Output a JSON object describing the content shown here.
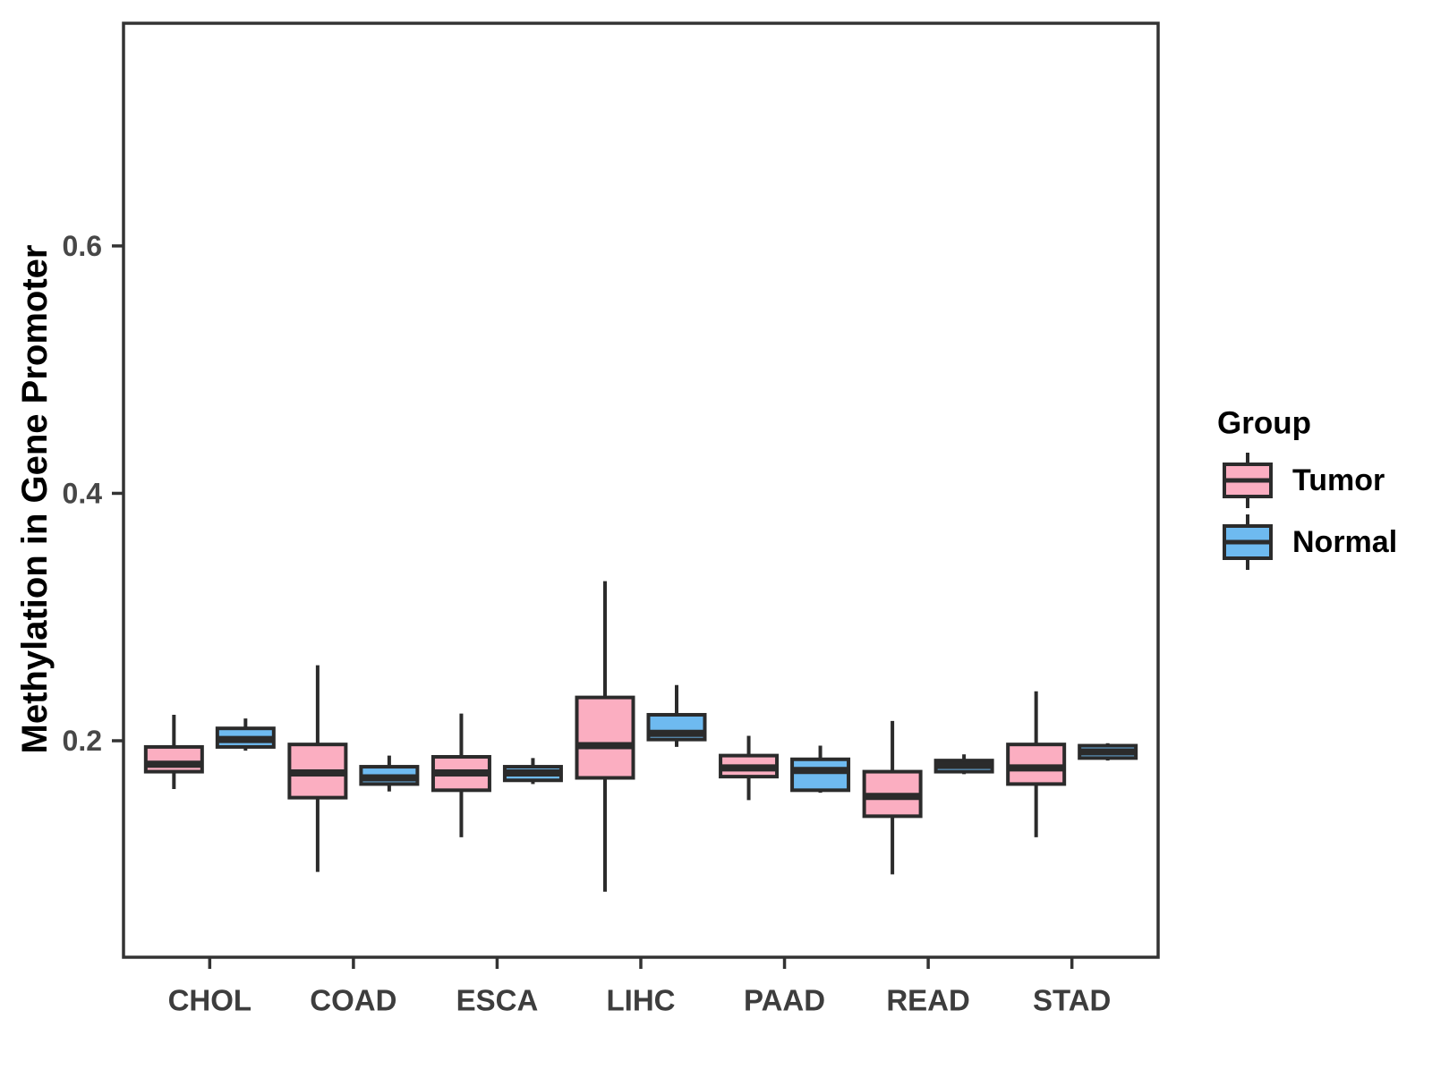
{
  "figure": {
    "background": "#FFFFFF"
  },
  "chart_data": {
    "type": "boxplot",
    "title": "",
    "xlabel": "",
    "ylabel": "Methylation in Gene Promoter",
    "categories": [
      "CHOL",
      "COAD",
      "ESCA",
      "LIHC",
      "PAAD",
      "READ",
      "STAD"
    ],
    "ylim": [
      0.025,
      0.78
    ],
    "yticks": [
      0.2,
      0.4,
      0.6
    ],
    "ytick_labels": [
      "0.2",
      "0.4",
      "0.6"
    ],
    "grid": "off",
    "legend_position": "right",
    "series": [
      {
        "name": "Tumor",
        "color": "#FBAEC1",
        "boxes": [
          {
            "category": "CHOL",
            "lo": 0.161,
            "q1": 0.175,
            "med": 0.181,
            "q3": 0.195,
            "hi": 0.221
          },
          {
            "category": "COAD",
            "lo": 0.094,
            "q1": 0.154,
            "med": 0.174,
            "q3": 0.197,
            "hi": 0.261
          },
          {
            "category": "ESCA",
            "lo": 0.122,
            "q1": 0.16,
            "med": 0.174,
            "q3": 0.187,
            "hi": 0.222
          },
          {
            "category": "LIHC",
            "lo": 0.078,
            "q1": 0.17,
            "med": 0.196,
            "q3": 0.235,
            "hi": 0.329
          },
          {
            "category": "PAAD",
            "lo": 0.152,
            "q1": 0.171,
            "med": 0.178,
            "q3": 0.188,
            "hi": 0.204
          },
          {
            "category": "READ",
            "lo": 0.092,
            "q1": 0.139,
            "med": 0.155,
            "q3": 0.175,
            "hi": 0.216
          },
          {
            "category": "STAD",
            "lo": 0.122,
            "q1": 0.165,
            "med": 0.178,
            "q3": 0.197,
            "hi": 0.24
          }
        ]
      },
      {
        "name": "Normal",
        "color": "#6EBAF0",
        "boxes": [
          {
            "category": "CHOL",
            "lo": 0.192,
            "q1": 0.195,
            "med": 0.201,
            "q3": 0.21,
            "hi": 0.218
          },
          {
            "category": "COAD",
            "lo": 0.159,
            "q1": 0.165,
            "med": 0.17,
            "q3": 0.179,
            "hi": 0.188
          },
          {
            "category": "ESCA",
            "lo": 0.165,
            "q1": 0.168,
            "med": 0.174,
            "q3": 0.179,
            "hi": 0.186
          },
          {
            "category": "LIHC",
            "lo": 0.195,
            "q1": 0.201,
            "med": 0.206,
            "q3": 0.221,
            "hi": 0.245
          },
          {
            "category": "PAAD",
            "lo": 0.158,
            "q1": 0.16,
            "med": 0.176,
            "q3": 0.185,
            "hi": 0.196
          },
          {
            "category": "READ",
            "lo": 0.173,
            "q1": 0.175,
            "med": 0.18,
            "q3": 0.184,
            "hi": 0.189
          },
          {
            "category": "STAD",
            "lo": 0.184,
            "q1": 0.186,
            "med": 0.191,
            "q3": 0.196,
            "hi": 0.198
          }
        ]
      }
    ]
  },
  "legend": {
    "title": "Group",
    "entries": [
      {
        "label": "Tumor",
        "color": "#FBAEC1"
      },
      {
        "label": "Normal",
        "color": "#6EBAF0"
      }
    ]
  },
  "colors": {
    "box_border": "#2B2B2B",
    "panel_border": "#333333",
    "axis_text": "#474747",
    "category_text": "#3D3D3D",
    "title_text": "#000000"
  }
}
